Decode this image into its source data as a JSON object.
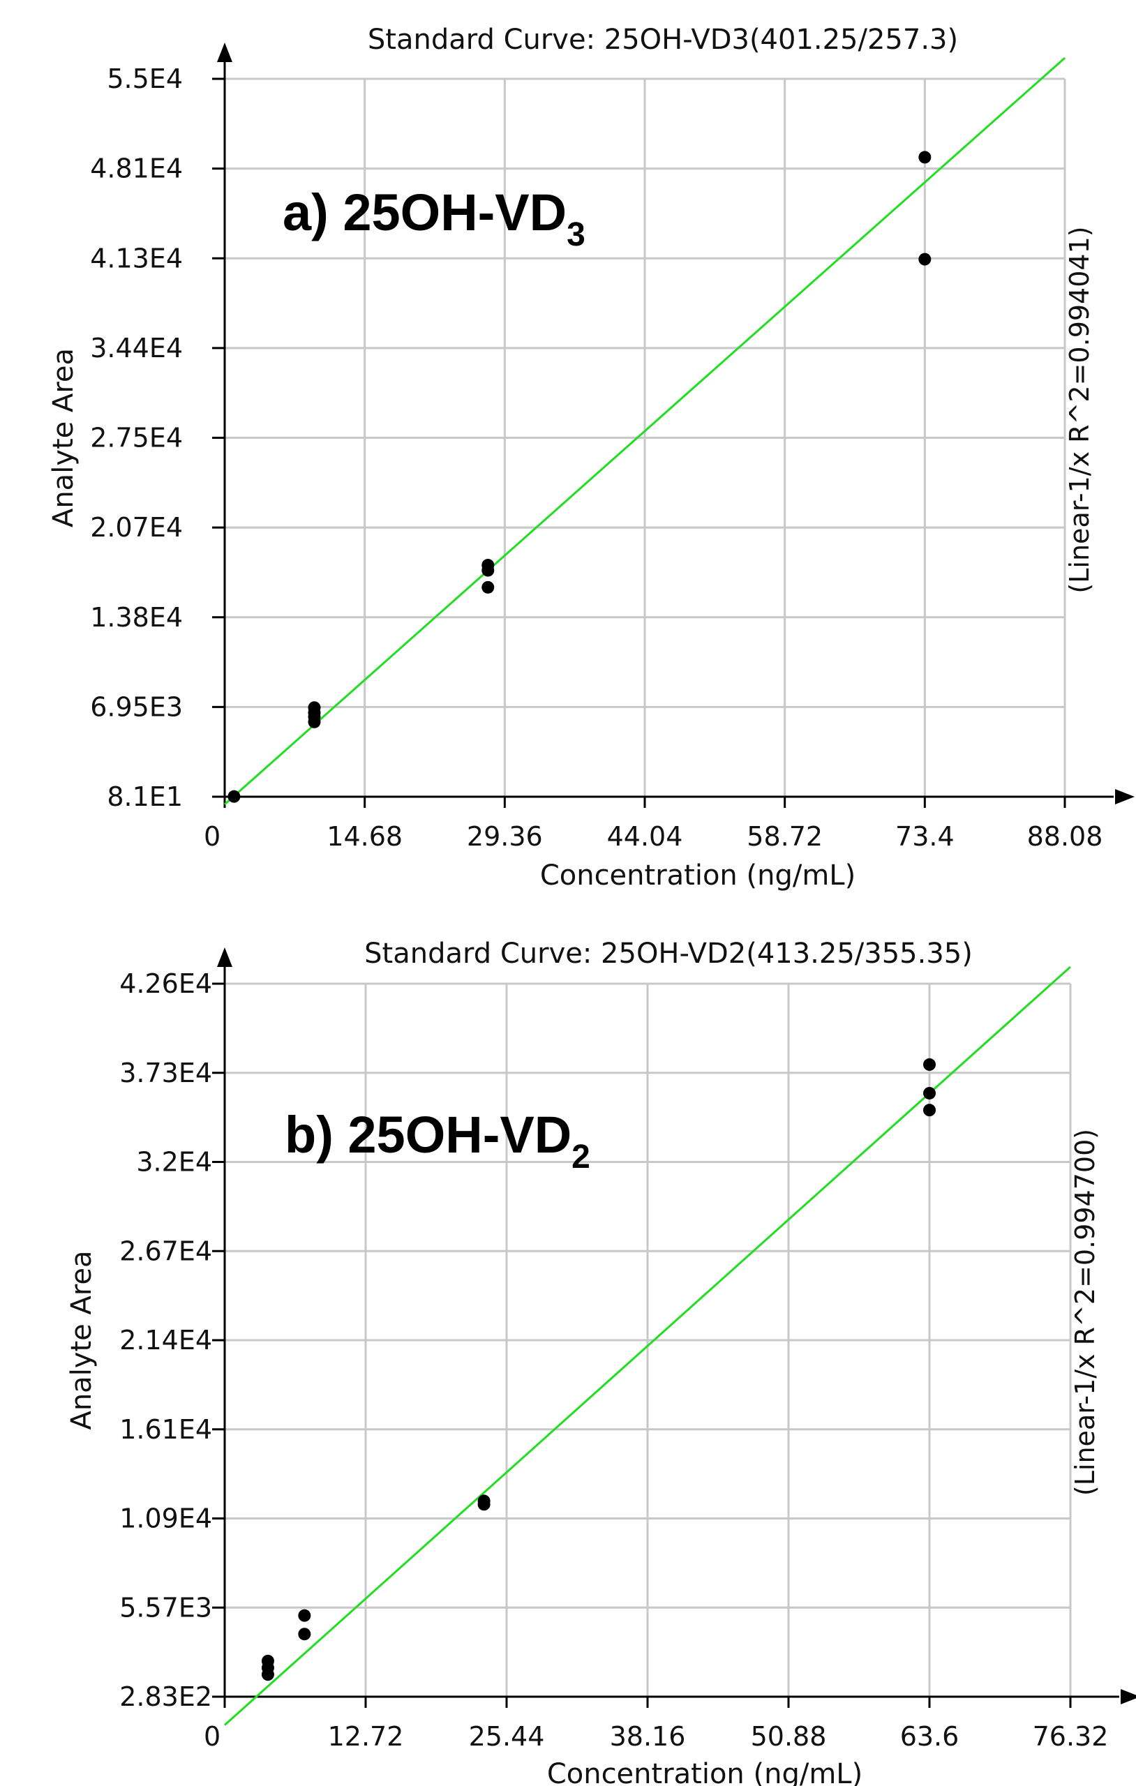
{
  "chart_data": [
    {
      "type": "scatter",
      "title": "Standard Curve: 25OH-VD3(401.25/257.3)",
      "panel_label": {
        "text": "a) 25OH-VD",
        "subscript": "3"
      },
      "xlabel": "Concentration (ng/mL)",
      "ylabel": "Analyte Area",
      "fit_label": "(Linear-1/x R^2=0.994041)",
      "x_ticks": [
        "0",
        "14.68",
        "29.36",
        "44.04",
        "58.72",
        "73.4",
        "88.08"
      ],
      "y_ticks": [
        "8.1E1",
        "6.95E3",
        "1.38E4",
        "2.07E4",
        "2.75E4",
        "3.44E4",
        "4.13E4",
        "4.81E4",
        "5.5E4"
      ],
      "xlim": [
        0,
        88.08
      ],
      "ylim": [
        81,
        55000
      ],
      "grid": true,
      "series": [
        {
          "x": [
            0.98,
            9.4,
            9.4,
            9.4,
            9.4,
            27.6,
            27.6,
            27.6,
            73.4,
            73.4
          ],
          "y": [
            100,
            5800,
            6200,
            6500,
            6900,
            16100,
            17400,
            17800,
            49000,
            41200
          ]
        }
      ],
      "fit_line": {
        "x": [
          0,
          88.08
        ],
        "y": [
          -500,
          56600
        ]
      },
      "colors": {
        "fit": "#22dd22",
        "points": "#000000",
        "grid": "#c8c8c8"
      }
    },
    {
      "type": "scatter",
      "title": "Standard Curve: 25OH-VD2(413.25/355.35)",
      "panel_label": {
        "text": "b) 25OH-VD",
        "subscript": "2"
      },
      "xlabel": "Concentration (ng/mL)",
      "ylabel": "Analyte Area",
      "fit_label": "(Linear-1/x R^2=0.994700)",
      "x_ticks": [
        "0",
        "12.72",
        "25.44",
        "38.16",
        "50.88",
        "63.6",
        "76.32"
      ],
      "y_ticks": [
        "2.83E2",
        "5.57E3",
        "1.09E4",
        "1.61E4",
        "2.14E4",
        "2.67E4",
        "3.2E4",
        "3.73E4",
        "4.26E4"
      ],
      "xlim": [
        0,
        76.32
      ],
      "ylim": [
        283,
        42600
      ],
      "grid": true,
      "series": [
        {
          "x": [
            3.9,
            3.9,
            3.9,
            7.2,
            7.2,
            23.4,
            23.4,
            63.6,
            63.6,
            63.6
          ],
          "y": [
            1600,
            2000,
            2400,
            4000,
            5100,
            11700,
            11900,
            35100,
            36100,
            37800
          ]
        }
      ],
      "fit_line": {
        "x": [
          0,
          76.32
        ],
        "y": [
          -1400,
          43600
        ]
      },
      "colors": {
        "fit": "#22dd22",
        "points": "#000000",
        "grid": "#c8c8c8"
      }
    }
  ]
}
